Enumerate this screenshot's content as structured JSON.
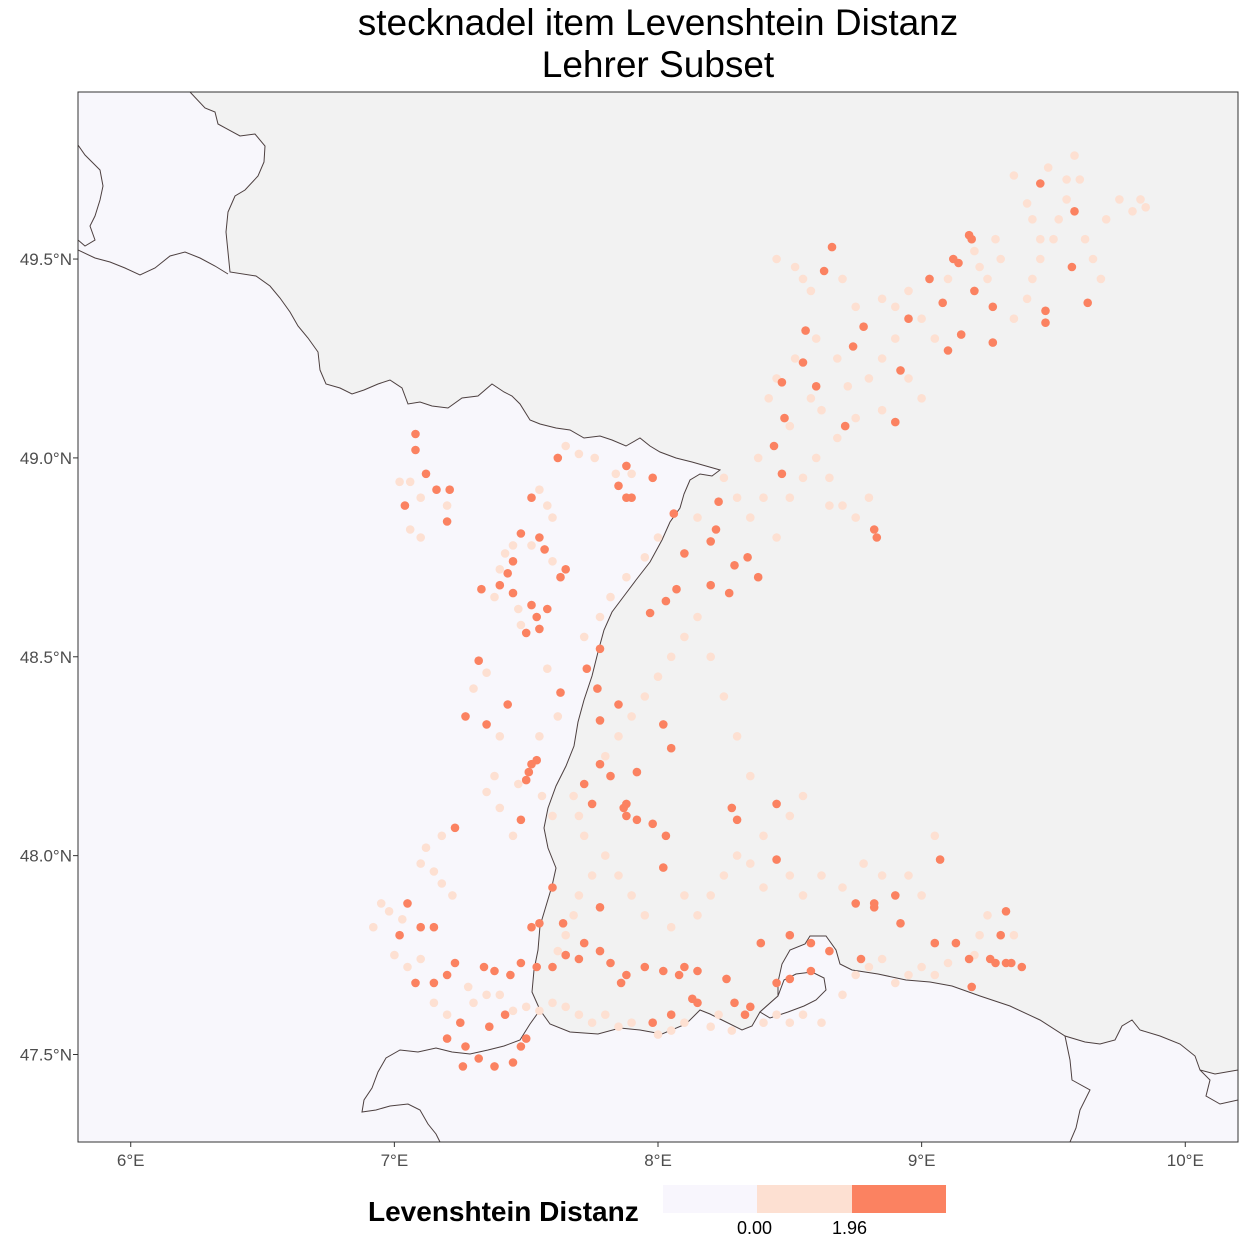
{
  "title": {
    "line1": "stecknadel item Levenshtein Distanz",
    "line2": "Lehrer Subset"
  },
  "colors": {
    "land_in_area": "#f8f7fc",
    "land_outside": "#f2f2f2",
    "border": "#4d4040",
    "low": "#f8f6fd",
    "mid": "#fde0d2",
    "high": "#fb8261"
  },
  "axes": {
    "x_ticks": [
      {
        "value": 6,
        "label": "6°E"
      },
      {
        "value": 7,
        "label": "7°E"
      },
      {
        "value": 8,
        "label": "8°E"
      },
      {
        "value": 9,
        "label": "9°E"
      },
      {
        "value": 10,
        "label": "10°E"
      }
    ],
    "y_ticks": [
      {
        "value": 47.5,
        "label": "47.5°N"
      },
      {
        "value": 48.0,
        "label": "48.0°N"
      },
      {
        "value": 48.5,
        "label": "48.5°N"
      },
      {
        "value": 49.0,
        "label": "49.0°N"
      },
      {
        "value": 49.5,
        "label": "49.5°N"
      }
    ],
    "lon_range": [
      5.8,
      10.2
    ],
    "lat_range": [
      47.28,
      49.92
    ]
  },
  "legend": {
    "title": "Levenshtein Distanz",
    "labels": [
      "0.00",
      "1.96"
    ]
  },
  "chart_data": {
    "type": "scatter",
    "xlabel": "",
    "ylabel": "",
    "points_high": [
      [
        7.08,
        49.06
      ],
      [
        7.08,
        49.02
      ],
      [
        7.12,
        48.96
      ],
      [
        7.16,
        48.92
      ],
      [
        7.21,
        48.92
      ],
      [
        7.04,
        48.88
      ],
      [
        7.2,
        48.84
      ],
      [
        7.62,
        49.0
      ],
      [
        7.88,
        48.98
      ],
      [
        7.85,
        48.93
      ],
      [
        7.88,
        48.9
      ],
      [
        7.9,
        48.9
      ],
      [
        7.98,
        48.95
      ],
      [
        7.52,
        48.9
      ],
      [
        7.48,
        48.81
      ],
      [
        7.55,
        48.8
      ],
      [
        7.57,
        48.77
      ],
      [
        7.45,
        48.74
      ],
      [
        7.43,
        48.71
      ],
      [
        7.4,
        48.68
      ],
      [
        7.33,
        48.67
      ],
      [
        7.45,
        48.66
      ],
      [
        7.52,
        48.63
      ],
      [
        7.58,
        48.62
      ],
      [
        7.65,
        48.72
      ],
      [
        7.63,
        48.7
      ],
      [
        7.54,
        48.6
      ],
      [
        7.55,
        48.57
      ],
      [
        7.5,
        48.56
      ],
      [
        7.32,
        48.49
      ],
      [
        7.27,
        48.35
      ],
      [
        7.35,
        48.33
      ],
      [
        7.43,
        48.38
      ],
      [
        7.52,
        48.23
      ],
      [
        7.54,
        48.24
      ],
      [
        7.51,
        48.21
      ],
      [
        7.5,
        48.19
      ],
      [
        7.48,
        48.09
      ],
      [
        7.23,
        48.07
      ],
      [
        7.63,
        48.41
      ],
      [
        8.06,
        48.86
      ],
      [
        8.1,
        48.76
      ],
      [
        8.23,
        48.89
      ],
      [
        8.22,
        48.82
      ],
      [
        8.2,
        48.79
      ],
      [
        8.07,
        48.67
      ],
      [
        8.2,
        48.68
      ],
      [
        8.27,
        48.66
      ],
      [
        8.29,
        48.73
      ],
      [
        8.34,
        48.75
      ],
      [
        8.38,
        48.7
      ],
      [
        8.03,
        48.64
      ],
      [
        7.97,
        48.61
      ],
      [
        7.73,
        48.47
      ],
      [
        7.78,
        48.52
      ],
      [
        7.77,
        48.42
      ],
      [
        7.85,
        48.38
      ],
      [
        7.78,
        48.34
      ],
      [
        8.02,
        48.33
      ],
      [
        8.05,
        48.27
      ],
      [
        7.92,
        48.21
      ],
      [
        7.82,
        48.2
      ],
      [
        7.78,
        48.23
      ],
      [
        7.72,
        48.18
      ],
      [
        7.75,
        48.13
      ],
      [
        7.87,
        48.12
      ],
      [
        7.88,
        48.1
      ],
      [
        7.92,
        48.09
      ],
      [
        7.98,
        48.08
      ],
      [
        8.03,
        48.05
      ],
      [
        7.88,
        48.13
      ],
      [
        8.28,
        48.12
      ],
      [
        8.3,
        48.09
      ],
      [
        8.45,
        48.13
      ],
      [
        8.45,
        47.99
      ],
      [
        8.39,
        47.78
      ],
      [
        8.5,
        47.8
      ],
      [
        8.58,
        47.78
      ],
      [
        8.65,
        47.76
      ],
      [
        8.75,
        47.88
      ],
      [
        8.82,
        47.88
      ],
      [
        8.9,
        47.9
      ],
      [
        8.82,
        47.87
      ],
      [
        8.92,
        47.83
      ],
      [
        9.07,
        47.99
      ],
      [
        9.05,
        47.78
      ],
      [
        9.13,
        47.78
      ],
      [
        9.18,
        47.74
      ],
      [
        9.26,
        47.74
      ],
      [
        9.28,
        47.73
      ],
      [
        9.32,
        47.73
      ],
      [
        9.3,
        47.8
      ],
      [
        9.32,
        47.86
      ],
      [
        9.34,
        47.73
      ],
      [
        9.38,
        47.72
      ],
      [
        9.19,
        47.67
      ],
      [
        8.77,
        47.74
      ],
      [
        8.58,
        47.71
      ],
      [
        8.5,
        47.69
      ],
      [
        8.45,
        47.68
      ],
      [
        8.35,
        47.62
      ],
      [
        8.33,
        47.6
      ],
      [
        8.29,
        47.63
      ],
      [
        8.26,
        47.69
      ],
      [
        8.15,
        47.71
      ],
      [
        8.1,
        47.72
      ],
      [
        8.08,
        47.7
      ],
      [
        8.02,
        47.71
      ],
      [
        7.95,
        47.72
      ],
      [
        7.88,
        47.7
      ],
      [
        7.86,
        47.68
      ],
      [
        7.82,
        47.73
      ],
      [
        7.78,
        47.76
      ],
      [
        7.72,
        47.78
      ],
      [
        7.7,
        47.74
      ],
      [
        7.65,
        47.75
      ],
      [
        7.6,
        47.72
      ],
      [
        7.54,
        47.72
      ],
      [
        7.48,
        47.73
      ],
      [
        7.44,
        47.7
      ],
      [
        7.38,
        47.71
      ],
      [
        7.34,
        47.72
      ],
      [
        7.23,
        47.73
      ],
      [
        7.2,
        47.7
      ],
      [
        7.15,
        47.68
      ],
      [
        7.08,
        47.68
      ],
      [
        7.25,
        47.58
      ],
      [
        7.27,
        47.52
      ],
      [
        7.32,
        47.49
      ],
      [
        7.26,
        47.47
      ],
      [
        7.38,
        47.47
      ],
      [
        7.45,
        47.48
      ],
      [
        7.48,
        47.52
      ],
      [
        7.5,
        47.54
      ],
      [
        7.42,
        47.6
      ],
      [
        7.36,
        47.57
      ],
      [
        7.2,
        47.54
      ],
      [
        7.05,
        47.88
      ],
      [
        7.15,
        47.82
      ],
      [
        7.1,
        47.82
      ],
      [
        7.02,
        47.8
      ],
      [
        7.55,
        47.83
      ],
      [
        7.52,
        47.82
      ],
      [
        7.64,
        47.83
      ],
      [
        7.78,
        47.87
      ],
      [
        7.6,
        47.92
      ],
      [
        8.02,
        47.97
      ],
      [
        8.15,
        47.63
      ],
      [
        8.13,
        47.64
      ],
      [
        8.05,
        47.6
      ],
      [
        7.98,
        47.58
      ],
      [
        8.44,
        49.03
      ],
      [
        8.48,
        49.1
      ],
      [
        8.55,
        49.24
      ],
      [
        8.56,
        49.32
      ],
      [
        8.47,
        49.19
      ],
      [
        8.6,
        49.18
      ],
      [
        8.71,
        49.08
      ],
      [
        8.74,
        49.28
      ],
      [
        8.78,
        49.33
      ],
      [
        8.82,
        48.82
      ],
      [
        8.83,
        48.8
      ],
      [
        8.47,
        48.96
      ],
      [
        8.63,
        49.47
      ],
      [
        8.66,
        49.53
      ],
      [
        8.95,
        49.35
      ],
      [
        9.03,
        49.45
      ],
      [
        9.08,
        49.39
      ],
      [
        9.1,
        49.27
      ],
      [
        9.15,
        49.31
      ],
      [
        9.18,
        49.56
      ],
      [
        9.19,
        49.55
      ],
      [
        9.14,
        49.49
      ],
      [
        9.12,
        49.5
      ],
      [
        9.2,
        49.42
      ],
      [
        9.27,
        49.29
      ],
      [
        9.27,
        49.38
      ],
      [
        9.47,
        49.37
      ],
      [
        9.47,
        49.34
      ],
      [
        9.45,
        49.69
      ],
      [
        9.58,
        49.62
      ],
      [
        9.57,
        49.48
      ],
      [
        9.63,
        49.39
      ],
      [
        8.92,
        49.22
      ],
      [
        8.9,
        49.09
      ]
    ],
    "points_mid": [
      [
        7.02,
        48.94
      ],
      [
        7.06,
        48.94
      ],
      [
        7.1,
        48.9
      ],
      [
        7.06,
        48.82
      ],
      [
        7.1,
        48.8
      ],
      [
        7.2,
        48.88
      ],
      [
        7.65,
        49.03
      ],
      [
        7.7,
        49.01
      ],
      [
        7.76,
        49.0
      ],
      [
        7.84,
        48.96
      ],
      [
        7.9,
        48.96
      ],
      [
        7.55,
        48.92
      ],
      [
        7.58,
        48.88
      ],
      [
        7.6,
        48.85
      ],
      [
        7.52,
        48.78
      ],
      [
        7.6,
        48.74
      ],
      [
        7.45,
        48.78
      ],
      [
        7.42,
        48.76
      ],
      [
        7.4,
        48.72
      ],
      [
        7.38,
        48.65
      ],
      [
        7.47,
        48.62
      ],
      [
        7.48,
        48.58
      ],
      [
        7.35,
        48.46
      ],
      [
        7.3,
        48.42
      ],
      [
        7.4,
        48.3
      ],
      [
        7.38,
        48.2
      ],
      [
        7.35,
        48.16
      ],
      [
        7.4,
        48.12
      ],
      [
        7.45,
        48.05
      ],
      [
        7.47,
        48.18
      ],
      [
        7.56,
        48.15
      ],
      [
        7.6,
        48.1
      ],
      [
        7.58,
        48.47
      ],
      [
        7.62,
        48.35
      ],
      [
        7.55,
        48.3
      ],
      [
        7.12,
        48.02
      ],
      [
        7.18,
        48.05
      ],
      [
        7.15,
        47.96
      ],
      [
        7.22,
        47.9
      ],
      [
        7.18,
        47.93
      ],
      [
        7.1,
        47.98
      ],
      [
        6.95,
        47.88
      ],
      [
        6.98,
        47.86
      ],
      [
        7.03,
        47.84
      ],
      [
        6.92,
        47.82
      ],
      [
        7.0,
        47.75
      ],
      [
        7.05,
        47.72
      ],
      [
        7.1,
        47.74
      ],
      [
        7.15,
        47.63
      ],
      [
        7.2,
        47.6
      ],
      [
        7.3,
        47.63
      ],
      [
        7.35,
        47.65
      ],
      [
        7.28,
        47.67
      ],
      [
        7.4,
        47.65
      ],
      [
        7.45,
        47.61
      ],
      [
        7.5,
        47.62
      ],
      [
        7.55,
        47.61
      ],
      [
        7.6,
        47.63
      ],
      [
        7.65,
        47.62
      ],
      [
        7.7,
        47.6
      ],
      [
        7.75,
        47.58
      ],
      [
        7.8,
        47.6
      ],
      [
        7.85,
        47.57
      ],
      [
        7.9,
        47.58
      ],
      [
        8.0,
        47.55
      ],
      [
        8.05,
        47.56
      ],
      [
        8.1,
        47.58
      ],
      [
        8.2,
        47.57
      ],
      [
        8.23,
        47.6
      ],
      [
        8.28,
        47.56
      ],
      [
        8.4,
        47.58
      ],
      [
        8.45,
        47.6
      ],
      [
        8.5,
        47.58
      ],
      [
        8.55,
        47.6
      ],
      [
        8.62,
        47.58
      ],
      [
        8.7,
        47.65
      ],
      [
        8.75,
        47.7
      ],
      [
        8.8,
        47.72
      ],
      [
        8.85,
        47.74
      ],
      [
        8.9,
        47.68
      ],
      [
        8.95,
        47.7
      ],
      [
        9.0,
        47.72
      ],
      [
        9.05,
        47.7
      ],
      [
        9.1,
        47.73
      ],
      [
        9.2,
        47.75
      ],
      [
        9.22,
        47.8
      ],
      [
        9.25,
        47.85
      ],
      [
        9.35,
        47.8
      ],
      [
        9.0,
        47.9
      ],
      [
        8.95,
        47.95
      ],
      [
        9.05,
        48.05
      ],
      [
        8.85,
        47.95
      ],
      [
        8.78,
        47.98
      ],
      [
        8.7,
        47.92
      ],
      [
        8.62,
        47.95
      ],
      [
        8.55,
        47.9
      ],
      [
        8.5,
        47.95
      ],
      [
        8.4,
        47.92
      ],
      [
        8.35,
        47.98
      ],
      [
        8.3,
        48.0
      ],
      [
        8.25,
        47.95
      ],
      [
        8.2,
        47.9
      ],
      [
        8.15,
        47.85
      ],
      [
        8.1,
        47.9
      ],
      [
        8.05,
        47.82
      ],
      [
        7.95,
        47.85
      ],
      [
        7.9,
        47.9
      ],
      [
        7.85,
        47.95
      ],
      [
        7.8,
        48.0
      ],
      [
        7.75,
        47.95
      ],
      [
        7.7,
        47.9
      ],
      [
        7.65,
        47.8
      ],
      [
        7.62,
        47.76
      ],
      [
        7.68,
        47.85
      ],
      [
        7.72,
        48.05
      ],
      [
        7.7,
        48.1
      ],
      [
        7.68,
        48.15
      ],
      [
        7.8,
        48.25
      ],
      [
        7.85,
        48.3
      ],
      [
        7.9,
        48.35
      ],
      [
        7.95,
        48.4
      ],
      [
        8.0,
        48.45
      ],
      [
        8.05,
        48.5
      ],
      [
        8.1,
        48.55
      ],
      [
        8.15,
        48.6
      ],
      [
        8.2,
        48.5
      ],
      [
        8.25,
        48.4
      ],
      [
        8.3,
        48.3
      ],
      [
        8.35,
        48.2
      ],
      [
        8.4,
        48.05
      ],
      [
        8.5,
        48.1
      ],
      [
        8.55,
        48.15
      ],
      [
        7.72,
        48.55
      ],
      [
        7.78,
        48.6
      ],
      [
        7.82,
        48.65
      ],
      [
        7.88,
        48.7
      ],
      [
        7.95,
        48.75
      ],
      [
        8.0,
        48.8
      ],
      [
        8.15,
        48.85
      ],
      [
        8.25,
        48.95
      ],
      [
        8.3,
        48.9
      ],
      [
        8.35,
        48.85
      ],
      [
        8.4,
        48.9
      ],
      [
        8.45,
        48.8
      ],
      [
        8.5,
        48.9
      ],
      [
        8.55,
        48.95
      ],
      [
        8.6,
        49.0
      ],
      [
        8.65,
        48.95
      ],
      [
        8.7,
        48.88
      ],
      [
        8.75,
        48.85
      ],
      [
        8.8,
        48.9
      ],
      [
        8.68,
        49.05
      ],
      [
        8.62,
        49.12
      ],
      [
        8.58,
        49.15
      ],
      [
        8.52,
        49.25
      ],
      [
        8.6,
        49.3
      ],
      [
        8.68,
        49.25
      ],
      [
        8.72,
        49.18
      ],
      [
        8.8,
        49.2
      ],
      [
        8.85,
        49.25
      ],
      [
        8.9,
        49.3
      ],
      [
        8.95,
        49.2
      ],
      [
        9.0,
        49.15
      ],
      [
        8.85,
        49.12
      ],
      [
        8.75,
        49.1
      ],
      [
        8.65,
        48.88
      ],
      [
        8.42,
        49.15
      ],
      [
        8.45,
        49.2
      ],
      [
        8.5,
        49.08
      ],
      [
        8.38,
        49.0
      ],
      [
        8.45,
        49.5
      ],
      [
        8.52,
        49.48
      ],
      [
        8.55,
        49.45
      ],
      [
        8.58,
        49.42
      ],
      [
        8.7,
        49.45
      ],
      [
        8.75,
        49.38
      ],
      [
        8.85,
        49.4
      ],
      [
        8.9,
        49.38
      ],
      [
        8.95,
        49.42
      ],
      [
        9.0,
        49.35
      ],
      [
        9.05,
        49.3
      ],
      [
        9.1,
        49.45
      ],
      [
        9.2,
        49.52
      ],
      [
        9.22,
        49.48
      ],
      [
        9.25,
        49.45
      ],
      [
        9.3,
        49.5
      ],
      [
        9.28,
        49.55
      ],
      [
        9.35,
        49.35
      ],
      [
        9.4,
        49.4
      ],
      [
        9.42,
        49.45
      ],
      [
        9.45,
        49.5
      ],
      [
        9.5,
        49.55
      ],
      [
        9.52,
        49.6
      ],
      [
        9.55,
        49.65
      ],
      [
        9.6,
        49.7
      ],
      [
        9.62,
        49.55
      ],
      [
        9.65,
        49.5
      ],
      [
        9.68,
        49.45
      ],
      [
        9.7,
        49.6
      ],
      [
        9.75,
        49.65
      ],
      [
        9.8,
        49.62
      ],
      [
        9.85,
        49.63
      ],
      [
        9.83,
        49.65
      ],
      [
        9.4,
        49.64
      ],
      [
        9.42,
        49.6
      ],
      [
        9.48,
        49.73
      ],
      [
        9.58,
        49.76
      ],
      [
        9.35,
        49.71
      ],
      [
        9.55,
        49.7
      ],
      [
        9.45,
        49.55
      ]
    ]
  }
}
